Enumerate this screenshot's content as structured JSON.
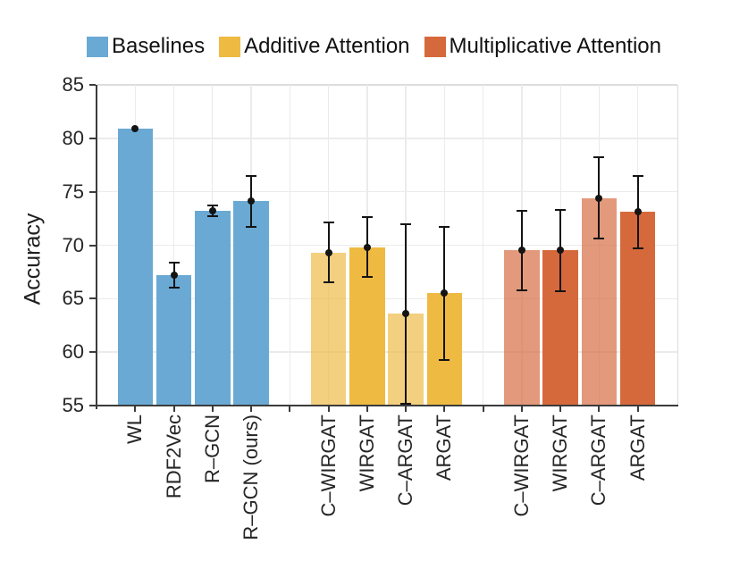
{
  "figure": {
    "background": "#ffffff"
  },
  "legend": [
    {
      "label": "Baselines",
      "color": "#6AA9D4"
    },
    {
      "label": "Additive Attention",
      "color": "#EEBA42"
    },
    {
      "label": "Multiplicative Attention",
      "color": "#D6693C"
    }
  ],
  "chart_data": {
    "type": "bar",
    "title": "",
    "xlabel": "",
    "ylabel": "Accuracy",
    "ylim": [
      55,
      85
    ],
    "yticks": [
      55,
      60,
      65,
      70,
      75,
      80,
      85
    ],
    "grid": "both",
    "legend_position": "top",
    "error_bar_color": "#141414",
    "marker": "dot",
    "groups": [
      {
        "name": "Baselines",
        "color": "#6AA9D4",
        "bars": [
          {
            "label": "WL",
            "value": 80.9,
            "error": 0.1,
            "shade": "solid"
          },
          {
            "label": "RDF2Vec",
            "value": 67.2,
            "error": 1.2,
            "shade": "solid"
          },
          {
            "label": "R–GCN",
            "value": 73.2,
            "error": 0.5,
            "shade": "solid"
          },
          {
            "label": "R–GCN (ours)",
            "value": 74.1,
            "error": 2.4,
            "shade": "solid"
          }
        ]
      },
      {
        "name": "Additive Attention",
        "color": "#EEBA42",
        "bars": [
          {
            "label": "C–WIRGAT",
            "value": 69.3,
            "error": 2.8,
            "shade": "light"
          },
          {
            "label": "WIRGAT",
            "value": 69.8,
            "error": 2.8,
            "shade": "solid"
          },
          {
            "label": "C–ARGAT",
            "value": 63.6,
            "error": 8.4,
            "shade": "light"
          },
          {
            "label": "ARGAT",
            "value": 65.5,
            "error": 6.2,
            "shade": "solid"
          }
        ]
      },
      {
        "name": "Multiplicative Attention",
        "color": "#D6693C",
        "bars": [
          {
            "label": "C–WIRGAT",
            "value": 69.5,
            "error": 3.7,
            "shade": "light"
          },
          {
            "label": "WIRGAT",
            "value": 69.5,
            "error": 3.8,
            "shade": "solid"
          },
          {
            "label": "C–ARGAT",
            "value": 74.4,
            "error": 3.8,
            "shade": "light"
          },
          {
            "label": "ARGAT",
            "value": 73.1,
            "error": 3.4,
            "shade": "solid"
          }
        ]
      }
    ]
  }
}
